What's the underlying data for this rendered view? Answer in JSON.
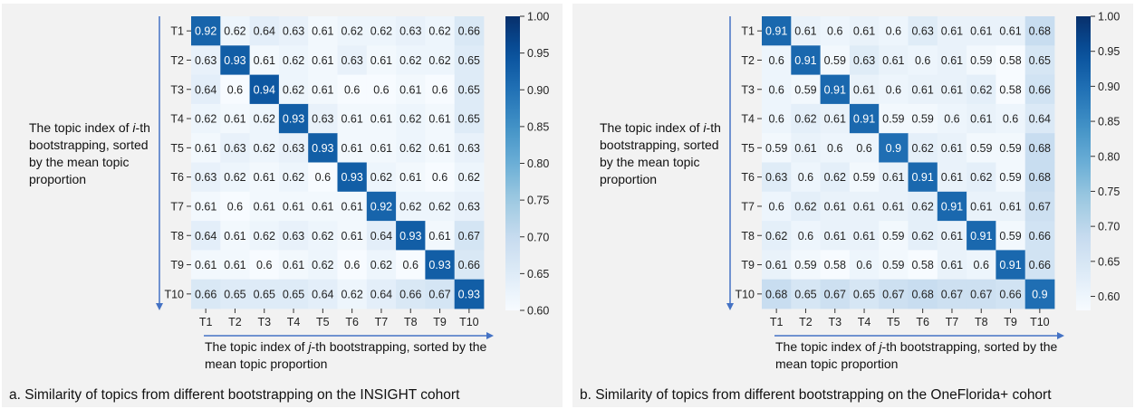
{
  "chart_data": [
    {
      "type": "heatmap",
      "row_labels": [
        "T1",
        "T2",
        "T3",
        "T4",
        "T5",
        "T6",
        "T7",
        "T8",
        "T9",
        "T10"
      ],
      "col_labels": [
        "T1",
        "T2",
        "T3",
        "T4",
        "T5",
        "T6",
        "T7",
        "T8",
        "T9",
        "T10"
      ],
      "values": [
        [
          0.92,
          0.62,
          0.64,
          0.63,
          0.61,
          0.62,
          0.62,
          0.63,
          0.62,
          0.66
        ],
        [
          0.63,
          0.93,
          0.61,
          0.62,
          0.61,
          0.63,
          0.61,
          0.62,
          0.62,
          0.65
        ],
        [
          0.64,
          0.6,
          0.94,
          0.62,
          0.61,
          0.6,
          0.6,
          0.61,
          0.6,
          0.65
        ],
        [
          0.62,
          0.61,
          0.62,
          0.93,
          0.63,
          0.61,
          0.61,
          0.62,
          0.61,
          0.65
        ],
        [
          0.61,
          0.63,
          0.62,
          0.63,
          0.93,
          0.61,
          0.61,
          0.62,
          0.61,
          0.63
        ],
        [
          0.63,
          0.62,
          0.61,
          0.62,
          0.6,
          0.93,
          0.62,
          0.61,
          0.6,
          0.62
        ],
        [
          0.61,
          0.6,
          0.61,
          0.61,
          0.61,
          0.61,
          0.92,
          0.62,
          0.62,
          0.63
        ],
        [
          0.64,
          0.61,
          0.62,
          0.63,
          0.62,
          0.61,
          0.64,
          0.93,
          0.61,
          0.67
        ],
        [
          0.61,
          0.61,
          0.6,
          0.61,
          0.62,
          0.6,
          0.62,
          0.6,
          0.93,
          0.66
        ],
        [
          0.66,
          0.65,
          0.65,
          0.65,
          0.64,
          0.62,
          0.64,
          0.66,
          0.67,
          0.93
        ]
      ],
      "colorbar": {
        "min": 0.6,
        "max": 1.0,
        "ticks": [
          "1.00",
          "0.95",
          "0.90",
          "0.85",
          "0.80",
          "0.75",
          "0.70",
          "0.65",
          "0.60"
        ]
      },
      "ylabel_parts": [
        "The topic index of ",
        "i",
        "-th bootstrapping, sorted by the mean topic proportion"
      ],
      "xlabel_parts": [
        "The topic index of ",
        "j",
        "-th bootstrapping, sorted by the mean topic proportion"
      ],
      "caption": "a. Similarity of topics from different bootstrapping on the INSIGHT cohort"
    },
    {
      "type": "heatmap",
      "row_labels": [
        "T1",
        "T2",
        "T3",
        "T4",
        "T5",
        "T6",
        "T7",
        "T8",
        "T9",
        "T10"
      ],
      "col_labels": [
        "T1",
        "T2",
        "T3",
        "T4",
        "T5",
        "T6",
        "T7",
        "T8",
        "T9",
        "T10"
      ],
      "values": [
        [
          0.91,
          0.61,
          0.6,
          0.61,
          0.6,
          0.63,
          0.61,
          0.61,
          0.61,
          0.68
        ],
        [
          0.6,
          0.91,
          0.59,
          0.63,
          0.61,
          0.6,
          0.61,
          0.59,
          0.58,
          0.65
        ],
        [
          0.6,
          0.59,
          0.91,
          0.61,
          0.6,
          0.61,
          0.61,
          0.62,
          0.58,
          0.66
        ],
        [
          0.6,
          0.62,
          0.61,
          0.91,
          0.59,
          0.59,
          0.6,
          0.61,
          0.6,
          0.64
        ],
        [
          0.59,
          0.61,
          0.6,
          0.6,
          0.9,
          0.62,
          0.61,
          0.59,
          0.59,
          0.68
        ],
        [
          0.63,
          0.6,
          0.62,
          0.59,
          0.61,
          0.91,
          0.61,
          0.62,
          0.59,
          0.68
        ],
        [
          0.6,
          0.62,
          0.61,
          0.61,
          0.61,
          0.62,
          0.91,
          0.61,
          0.61,
          0.67
        ],
        [
          0.62,
          0.6,
          0.61,
          0.61,
          0.59,
          0.62,
          0.61,
          0.91,
          0.59,
          0.66
        ],
        [
          0.61,
          0.59,
          0.58,
          0.6,
          0.59,
          0.58,
          0.61,
          0.6,
          0.91,
          0.66
        ],
        [
          0.68,
          0.65,
          0.67,
          0.65,
          0.67,
          0.68,
          0.67,
          0.67,
          0.66,
          0.9
        ]
      ],
      "colorbar": {
        "min": 0.58,
        "max": 1.0,
        "ticks": [
          "1.00",
          "0.95",
          "0.90",
          "0.85",
          "0.80",
          "0.75",
          "0.70",
          "0.65",
          "0.60"
        ]
      },
      "ylabel_parts": [
        "The topic index of ",
        "i",
        "-th bootstrapping, sorted by the mean topic proportion"
      ],
      "xlabel_parts": [
        "The topic index of ",
        "j",
        "-th bootstrapping, sorted by the mean topic proportion"
      ],
      "caption": "b. Similarity of topics from different bootstrapping on the OneFlorida+ cohort"
    }
  ]
}
